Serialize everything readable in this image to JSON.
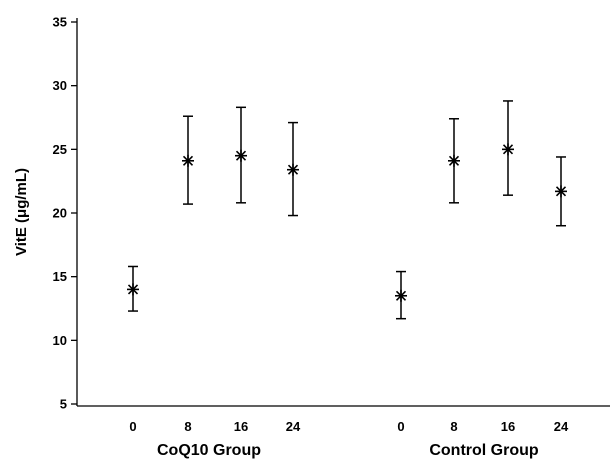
{
  "chart_data": {
    "type": "scatter",
    "ylabel": "VitE (μg/mL)",
    "ylim": [
      5,
      35
    ],
    "yticks": [
      "5",
      "10",
      "15",
      "20",
      "25",
      "30",
      "35"
    ],
    "grid": false,
    "legend": "none",
    "marker": "asterisk",
    "color": "#000000",
    "groups": [
      {
        "label": "CoQ10 Group",
        "points": [
          {
            "x": "0",
            "y": 14.0,
            "lower": 12.3,
            "upper": 15.8
          },
          {
            "x": "8",
            "y": 24.1,
            "lower": 20.7,
            "upper": 27.6
          },
          {
            "x": "16",
            "y": 24.5,
            "lower": 20.8,
            "upper": 28.3
          },
          {
            "x": "24",
            "y": 23.4,
            "lower": 19.8,
            "upper": 27.1
          }
        ]
      },
      {
        "label": "Control Group",
        "points": [
          {
            "x": "0",
            "y": 13.5,
            "lower": 11.7,
            "upper": 15.4
          },
          {
            "x": "8",
            "y": 24.1,
            "lower": 20.8,
            "upper": 27.4
          },
          {
            "x": "16",
            "y": 25.0,
            "lower": 21.4,
            "upper": 28.8
          },
          {
            "x": "24",
            "y": 21.7,
            "lower": 19.0,
            "upper": 24.4
          }
        ]
      }
    ]
  }
}
